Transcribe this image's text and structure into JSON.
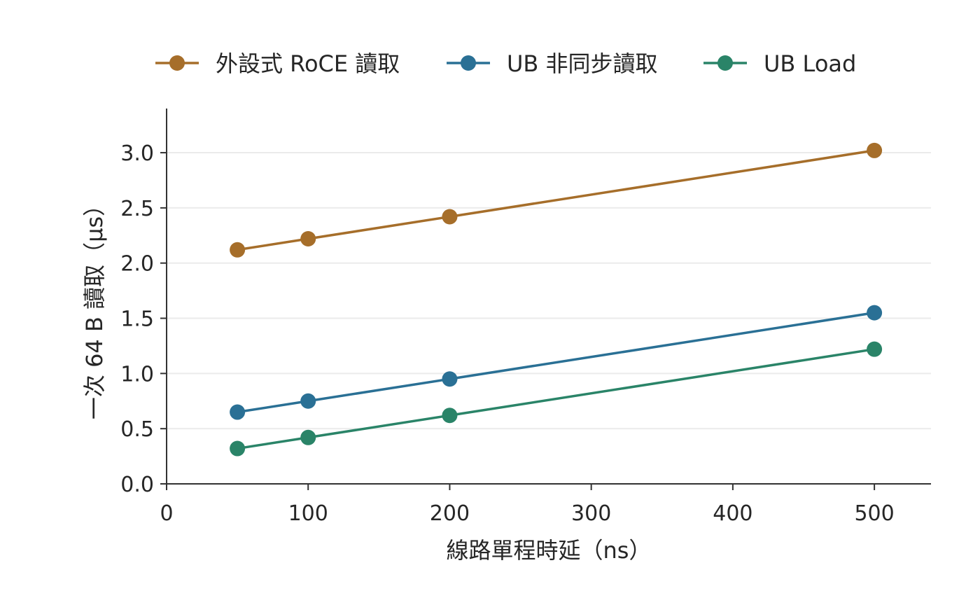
{
  "chart_data": {
    "type": "line",
    "title": "",
    "xlabel": "線路單程時延（ns）",
    "ylabel": "一次 64 B 讀取（μs）",
    "x": [
      50,
      100,
      200,
      500
    ],
    "xlim": [
      0,
      540
    ],
    "ylim": [
      0,
      3.4
    ],
    "xticks": [
      0,
      100,
      200,
      300,
      400,
      500
    ],
    "yticks": [
      0.0,
      0.5,
      1.0,
      1.5,
      2.0,
      2.5,
      3.0
    ],
    "xtick_labels": [
      "0",
      "100",
      "200",
      "300",
      "400",
      "500"
    ],
    "ytick_labels": [
      "0.0",
      "0.5",
      "1.0",
      "1.5",
      "2.0",
      "2.5",
      "3.0"
    ],
    "grid": "horizontal",
    "legend_position": "top",
    "series": [
      {
        "name": "外設式 RoCE 讀取",
        "color": "#a66e2a",
        "values": [
          2.12,
          2.22,
          2.42,
          3.02
        ]
      },
      {
        "name": "UB 非同步讀取",
        "color": "#2a7095",
        "values": [
          0.65,
          0.75,
          0.95,
          1.55
        ]
      },
      {
        "name": "UB Load",
        "color": "#2a8468",
        "values": [
          0.32,
          0.42,
          0.62,
          1.22
        ]
      }
    ]
  }
}
